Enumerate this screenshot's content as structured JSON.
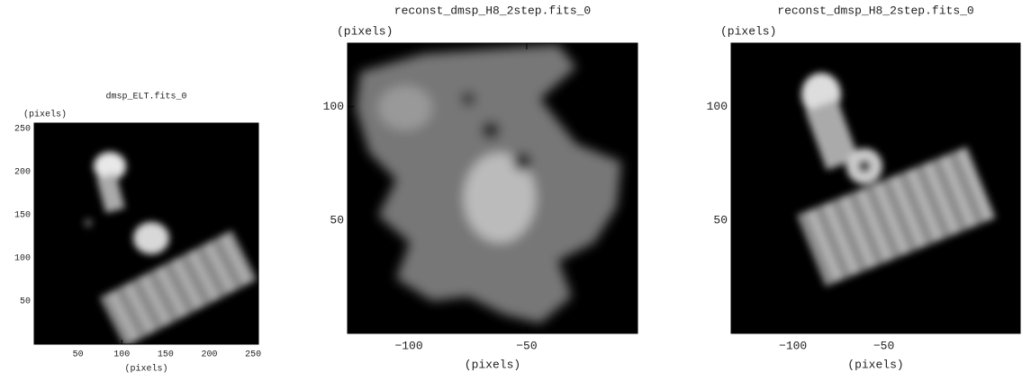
{
  "chart_data": [
    {
      "type": "image",
      "title": "dmsp_ELT.fits_0",
      "xlabel": "(pixels)",
      "ylabel": "(pixels)",
      "xlim": [
        0,
        256
      ],
      "ylim": [
        0,
        256
      ],
      "xticks": [
        50,
        100,
        150,
        200,
        250
      ],
      "yticks": [
        50,
        100,
        150,
        200,
        250
      ]
    },
    {
      "type": "image",
      "title": "reconst_dmsp_H8_2step.fits_0",
      "xlabel": "(pixels)",
      "ylabel": "(pixels)",
      "xlim": [
        -126,
        -3
      ],
      "ylim": [
        0,
        128
      ],
      "xticks": [
        {
          "value": -100,
          "label": "−100"
        },
        {
          "value": -50,
          "label": "−50"
        }
      ],
      "yticks": [
        50,
        100
      ]
    },
    {
      "type": "image",
      "title": "reconst_dmsp_H8_2step.fits_0",
      "xlabel": "(pixels)",
      "ylabel": "(pixels)",
      "xlim": [
        -134,
        25
      ],
      "ylim": [
        0,
        128
      ],
      "xticks": [
        {
          "value": -100,
          "label": "−100"
        },
        {
          "value": -50,
          "label": "−50"
        }
      ],
      "yticks": [
        50,
        100
      ]
    }
  ]
}
